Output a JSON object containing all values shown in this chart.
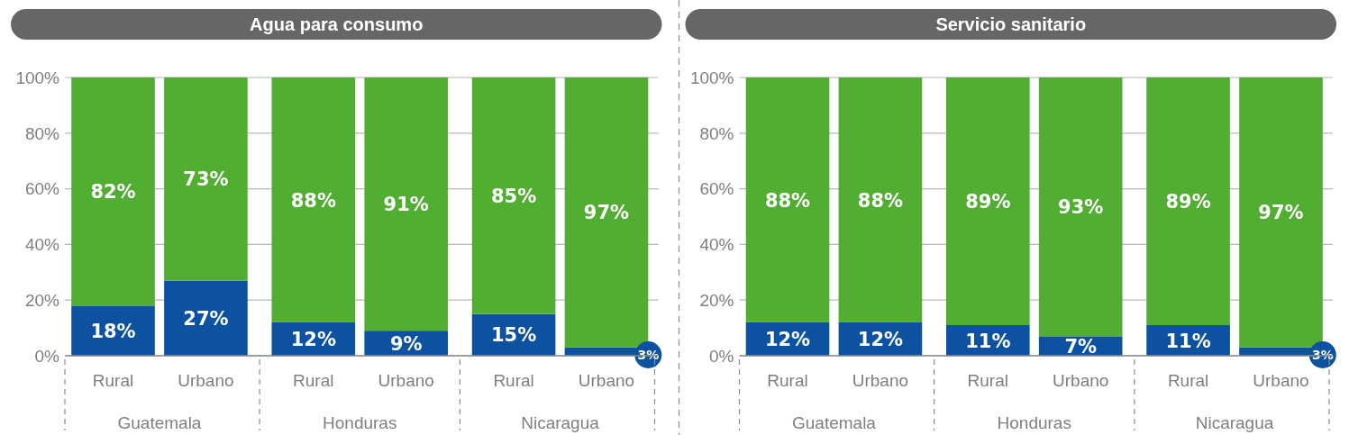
{
  "chart_data": [
    {
      "type": "bar",
      "title": "Agua para consumo",
      "categories": [
        "Rural",
        "Urbano",
        "Rural",
        "Urbano",
        "Rural",
        "Urbano"
      ],
      "annotations": [
        "Guatemala",
        "Honduras",
        "Nicaragua"
      ],
      "stacked": true,
      "series": [
        {
          "color": "#0c52a0",
          "values": [
            18,
            27,
            12,
            9,
            15,
            3
          ],
          "value_labels": [
            "18%",
            "27%",
            "12%",
            "9%",
            "15%",
            "3%"
          ]
        },
        {
          "color": "#52ad33",
          "values": [
            82,
            73,
            88,
            91,
            85,
            97
          ],
          "value_labels": [
            "82%",
            "73%",
            "88%",
            "91%",
            "85%",
            "97%"
          ]
        }
      ],
      "ylim": [
        0,
        100
      ],
      "yticks": [
        {
          "value": 0,
          "label": "0%"
        },
        {
          "value": 20,
          "label": "20%"
        },
        {
          "value": 40,
          "label": "40%"
        },
        {
          "value": 60,
          "label": "60%"
        },
        {
          "value": 80,
          "label": "80%"
        },
        {
          "value": 100,
          "label": "100%"
        }
      ],
      "grid": "y"
    },
    {
      "type": "bar",
      "title": "Servicio sanitario",
      "categories": [
        "Rural",
        "Urbano",
        "Rural",
        "Urbano",
        "Rural",
        "Urbano"
      ],
      "annotations": [
        "Guatemala",
        "Honduras",
        "Nicaragua"
      ],
      "stacked": true,
      "series": [
        {
          "color": "#0c52a0",
          "values": [
            12,
            12,
            11,
            7,
            11,
            3
          ],
          "value_labels": [
            "12%",
            "12%",
            "11%",
            "7%",
            "11%",
            "3%"
          ]
        },
        {
          "color": "#52ad33",
          "values": [
            88,
            88,
            89,
            93,
            89,
            97
          ],
          "value_labels": [
            "88%",
            "88%",
            "89%",
            "93%",
            "89%",
            "97%"
          ]
        }
      ],
      "ylim": [
        0,
        100
      ],
      "yticks": [
        {
          "value": 0,
          "label": "0%"
        },
        {
          "value": 20,
          "label": "20%"
        },
        {
          "value": 40,
          "label": "40%"
        },
        {
          "value": 60,
          "label": "60%"
        },
        {
          "value": 80,
          "label": "80%"
        },
        {
          "value": 100,
          "label": "100%"
        }
      ],
      "grid": "y"
    }
  ]
}
